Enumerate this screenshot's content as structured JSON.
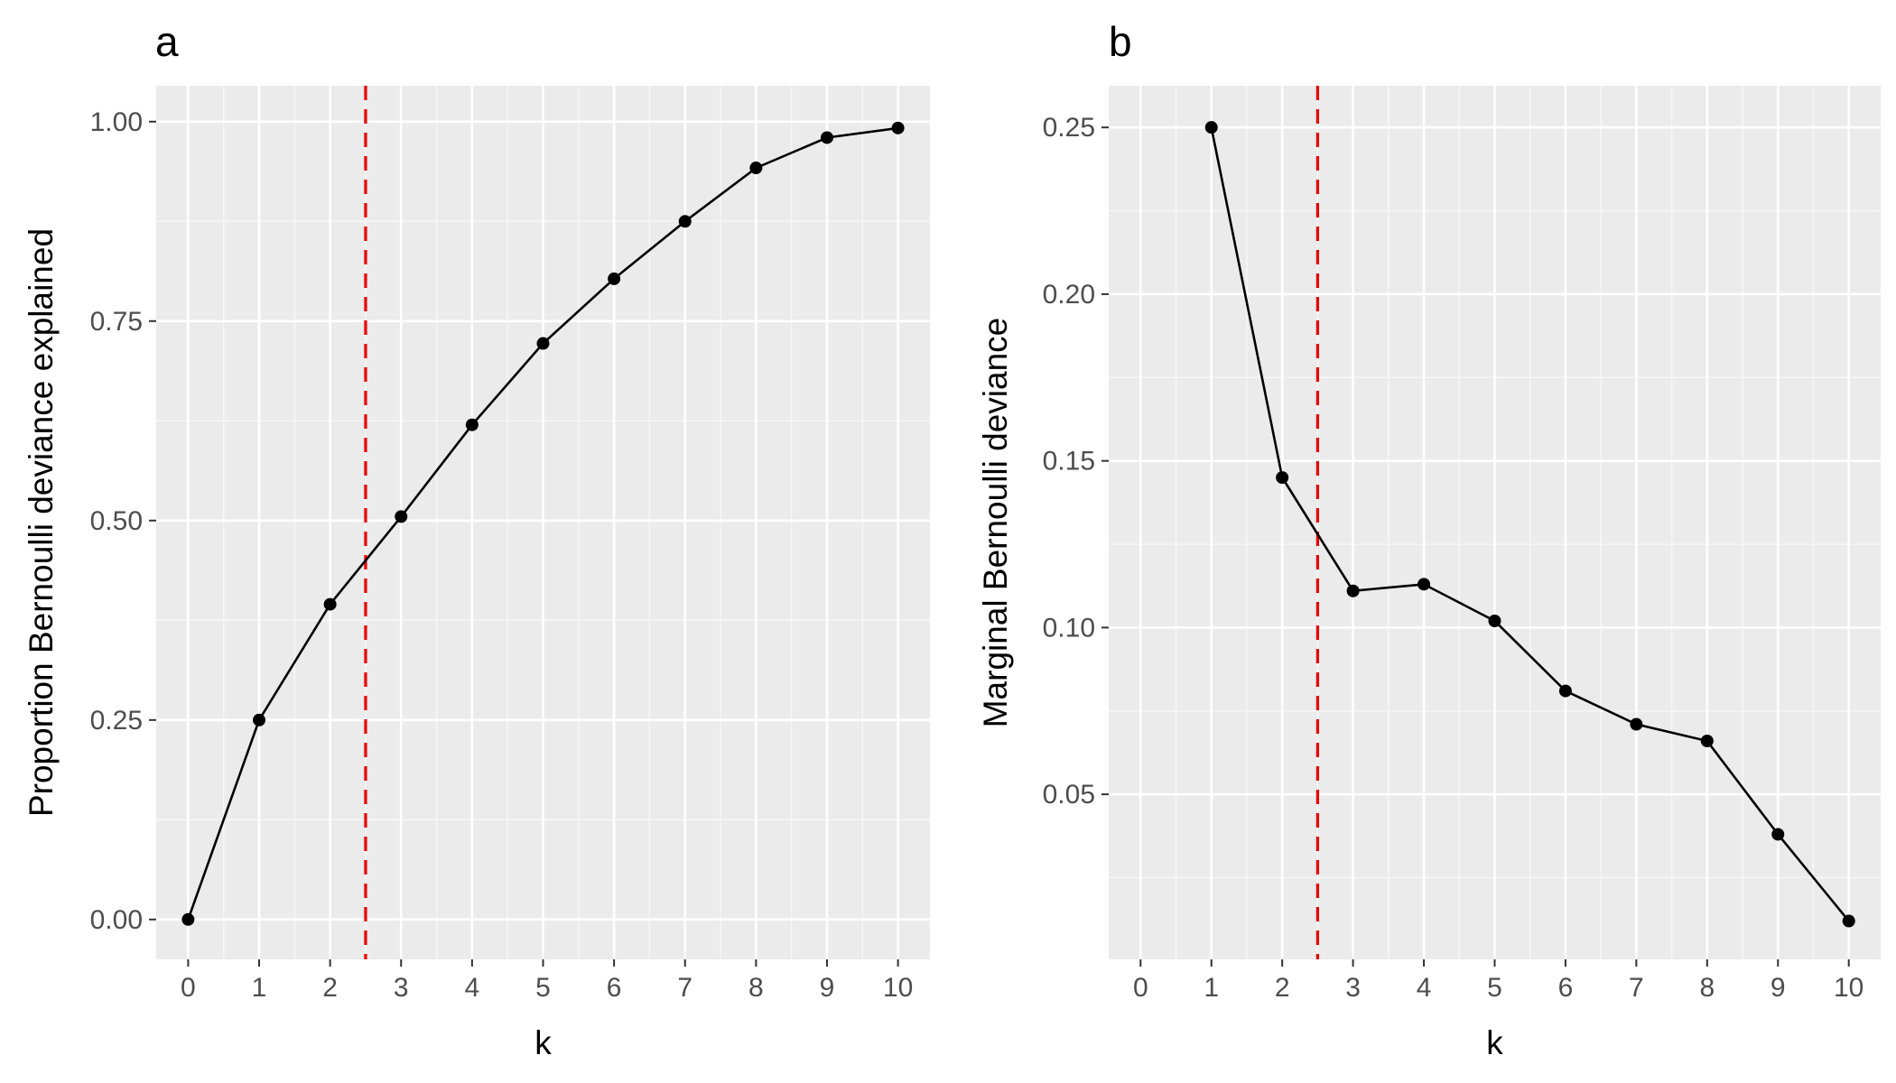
{
  "chart_data": [
    {
      "type": "line",
      "panel_label": "a",
      "title": "",
      "xlabel": "k",
      "ylabel": "Proportion Bernoulli deviance explained",
      "x": [
        0,
        1,
        2,
        3,
        4,
        5,
        6,
        7,
        8,
        9,
        10
      ],
      "series": [
        {
          "values": [
            0.0,
            0.25,
            0.395,
            0.505,
            0.62,
            0.722,
            0.803,
            0.875,
            0.942,
            0.98,
            0.992
          ]
        }
      ],
      "xlim": [
        -0.45,
        10.45
      ],
      "ylim": [
        -0.05,
        1.045
      ],
      "x_ticks": [
        0,
        1,
        2,
        3,
        4,
        5,
        6,
        7,
        8,
        9,
        10
      ],
      "y_ticks": [
        0.0,
        0.25,
        0.5,
        0.75,
        1.0
      ],
      "y_tick_labels": [
        "0.00",
        "0.25",
        "0.50",
        "0.75",
        "1.00"
      ],
      "reference_line": {
        "x": 2.5,
        "color": "#ee0000",
        "style": "dashed"
      },
      "line_color": "#000000",
      "grid": true
    },
    {
      "type": "line",
      "panel_label": "b",
      "title": "",
      "xlabel": "k",
      "ylabel": "Marginal Bernoulli deviance",
      "x": [
        1,
        2,
        3,
        4,
        5,
        6,
        7,
        8,
        9,
        10
      ],
      "series": [
        {
          "values": [
            0.25,
            0.145,
            0.111,
            0.113,
            0.102,
            0.081,
            0.071,
            0.066,
            0.038,
            0.012
          ]
        }
      ],
      "xlim": [
        -0.45,
        10.45
      ],
      "ylim": [
        0.0005,
        0.2625
      ],
      "x_ticks": [
        0,
        1,
        2,
        3,
        4,
        5,
        6,
        7,
        8,
        9,
        10
      ],
      "y_ticks": [
        0.05,
        0.1,
        0.15,
        0.2,
        0.25
      ],
      "y_tick_labels": [
        "0.05",
        "0.10",
        "0.15",
        "0.20",
        "0.25"
      ],
      "reference_line": {
        "x": 2.5,
        "color": "#ee0000",
        "style": "dashed"
      },
      "line_color": "#000000",
      "grid": true
    }
  ],
  "colors": {
    "panel_background": "#ebebeb",
    "grid_major": "#ffffff",
    "grid_minor": "#f7f7f7",
    "tick_text": "#4d4d4d",
    "tick_mark": "#333333"
  }
}
